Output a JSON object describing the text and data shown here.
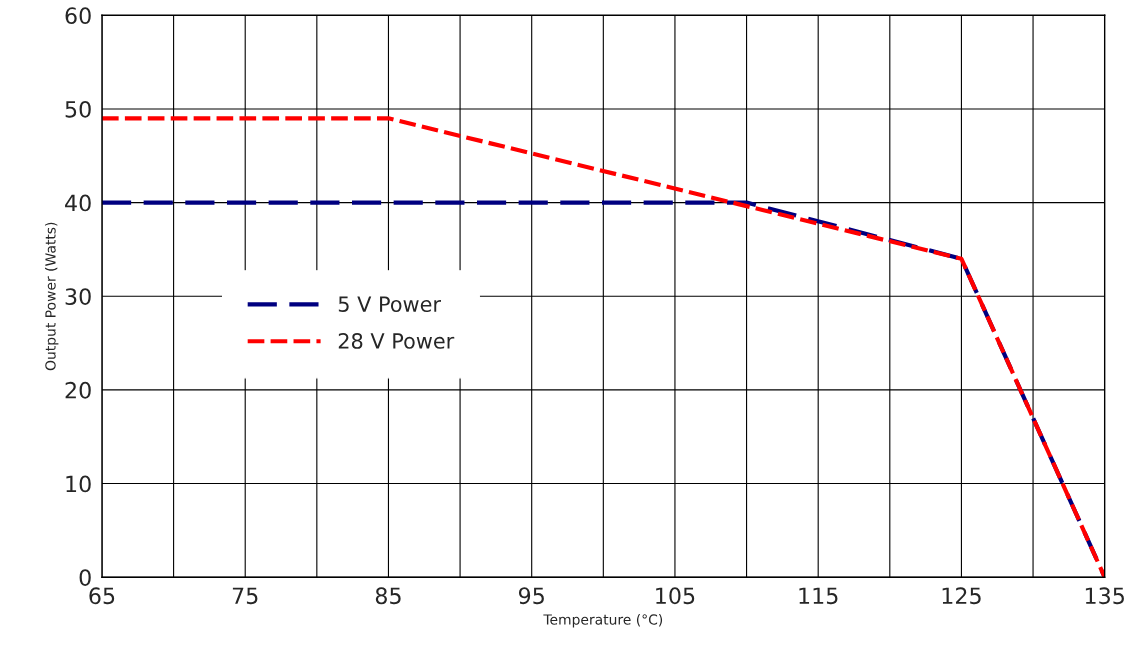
{
  "chart_data": {
    "type": "line",
    "xlabel": "Temperature (°C)",
    "ylabel": "Output Power (Watts)",
    "series": [
      {
        "name": "5 V Power",
        "color": "#000080",
        "x": [
          65,
          110,
          125,
          135
        ],
        "values": [
          40,
          40,
          34,
          0
        ],
        "line_style": "dashed"
      },
      {
        "name": "28 V Power",
        "color": "#ff0000",
        "x": [
          65,
          85,
          125,
          135
        ],
        "values": [
          49,
          49,
          34,
          0
        ],
        "line_style": "dashed"
      }
    ],
    "xlim": [
      65,
      135
    ],
    "xticks": [
      65,
      {
        "value": 70,
        "label": null
      },
      75,
      {
        "value": 80,
        "label": null
      },
      85,
      {
        "value": 90,
        "label": null
      },
      95,
      {
        "value": 100,
        "label": null
      },
      105,
      {
        "value": 110,
        "label": null
      },
      115,
      {
        "value": 120,
        "label": null
      },
      125,
      {
        "value": 130,
        "label": null
      },
      135
    ],
    "ylim": [
      0,
      60
    ],
    "yticks": [
      0,
      10,
      20,
      30,
      40,
      50,
      60
    ],
    "grid": true,
    "legend": "left",
    "marker": "none"
  }
}
